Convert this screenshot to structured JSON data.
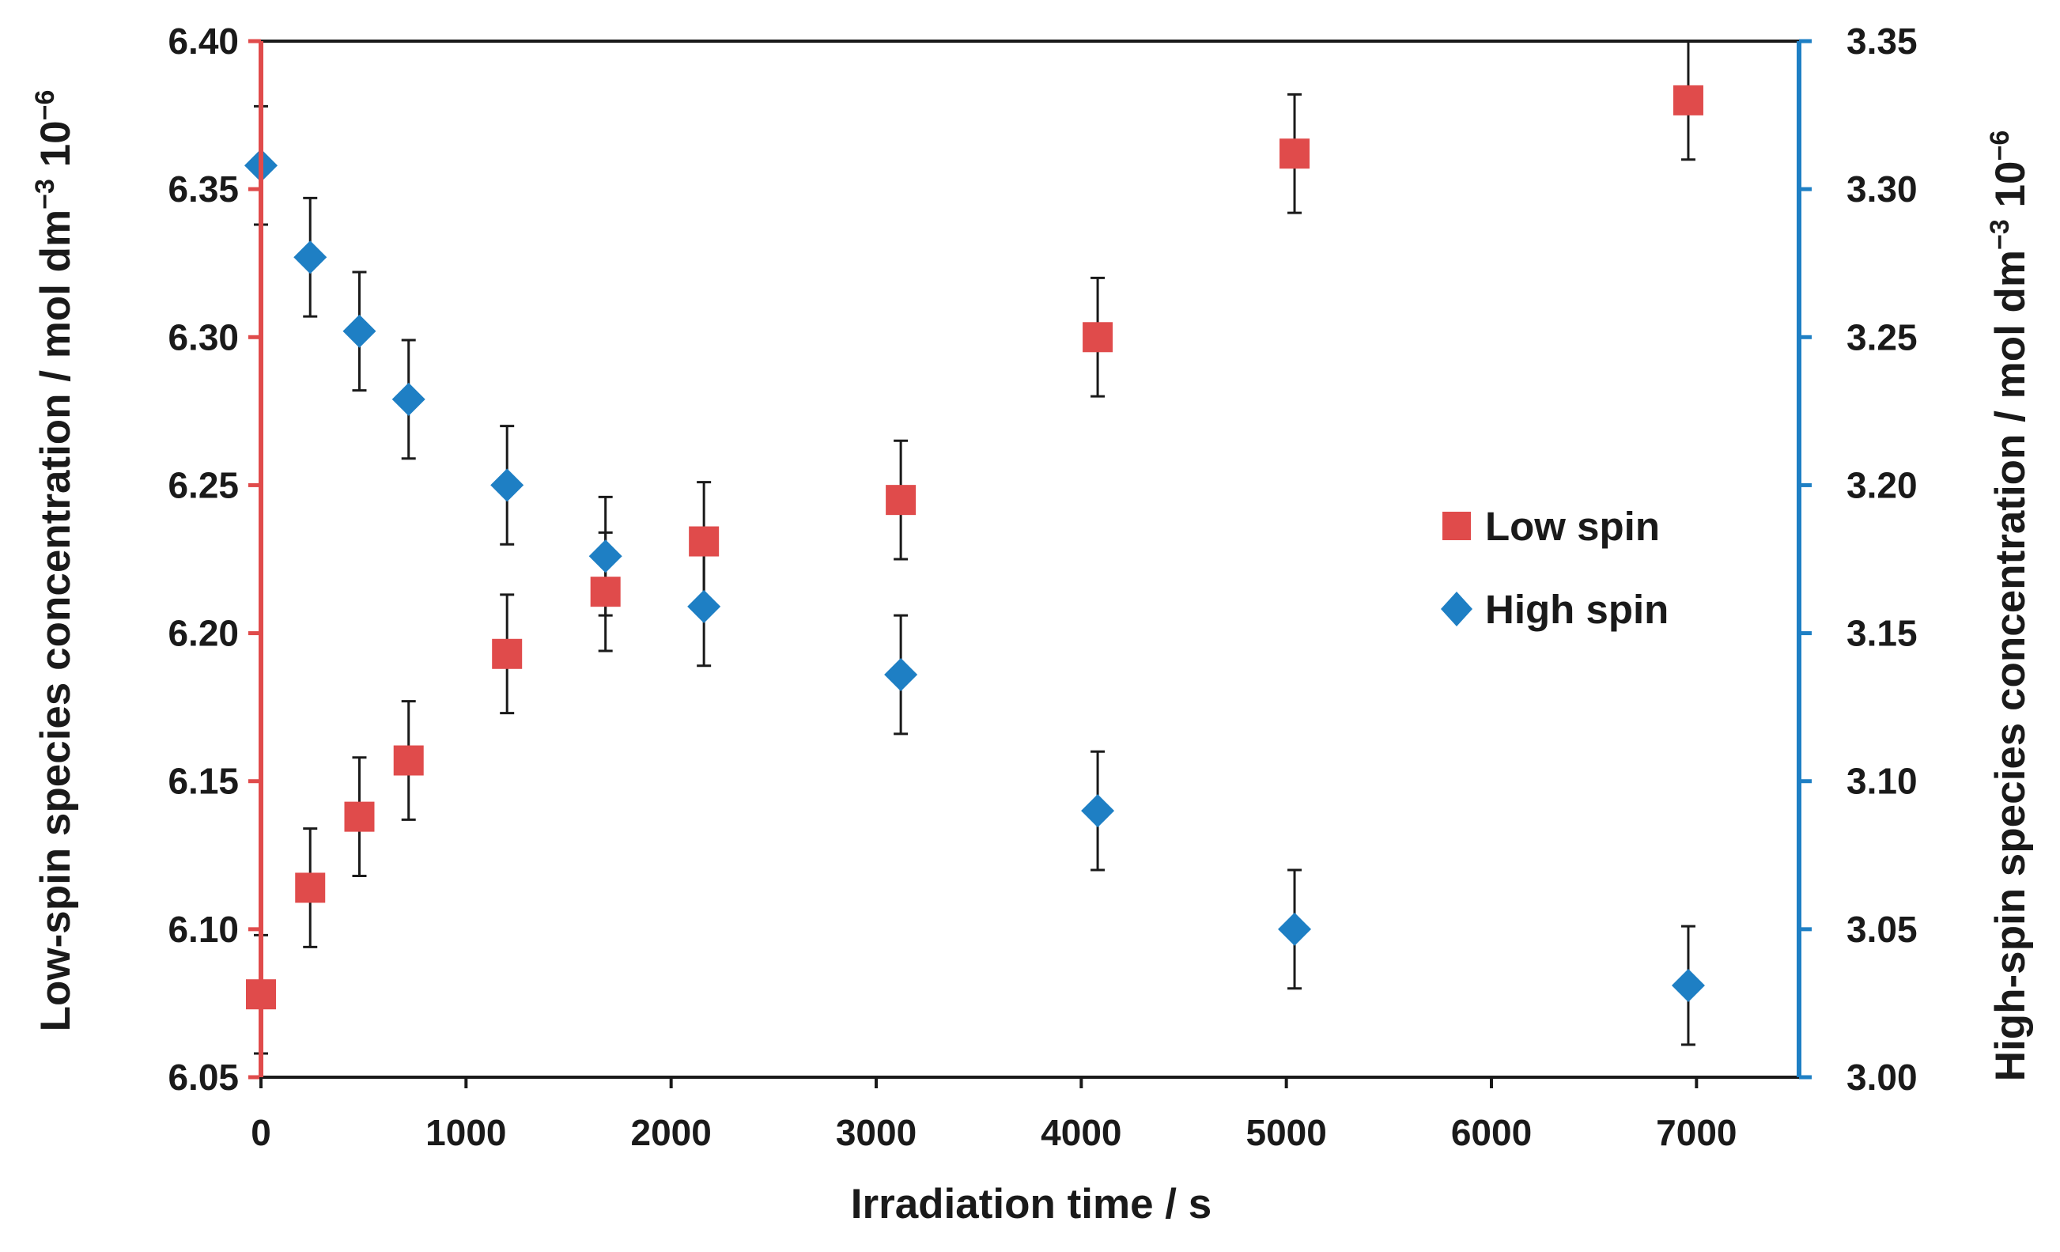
{
  "chart_data": {
    "type": "scatter",
    "title": "",
    "xlabel": "Irradiation time / s",
    "ylabel_left": "Low-spin species concentration / mol dm",
    "ylabel_right": "High-spin species concentration / mol dm",
    "ylabel_units_sup": "−3",
    "ylabel_units_pre": " 10",
    "ylabel_units_exp": "−6",
    "xlim": [
      0,
      7500
    ],
    "ylim_left": [
      6.05,
      6.4
    ],
    "ylim_right": [
      3.0,
      3.35
    ],
    "xticks": [
      0,
      1000,
      2000,
      3000,
      4000,
      5000,
      6000,
      7000
    ],
    "xtick_labels": [
      "0",
      "1000",
      "2000",
      "3000",
      "4000",
      "5000",
      "6000",
      "7000"
    ],
    "yticks_left": [
      6.05,
      6.1,
      6.15,
      6.2,
      6.25,
      6.3,
      6.35,
      6.4
    ],
    "ytick_labels_left": [
      "6.05",
      "6.10",
      "6.15",
      "6.20",
      "6.25",
      "6.30",
      "6.35",
      "6.40"
    ],
    "yticks_right": [
      3.0,
      3.05,
      3.1,
      3.15,
      3.2,
      3.25,
      3.3,
      3.35
    ],
    "ytick_labels_right": [
      "3.00",
      "3.05",
      "3.10",
      "3.15",
      "3.20",
      "3.25",
      "3.30",
      "3.35"
    ],
    "legend_position": "right-middle",
    "series": [
      {
        "name": "Low spin",
        "axis": "left",
        "marker": "square",
        "color": "#e04b4b",
        "x": [
          0,
          240,
          480,
          720,
          1200,
          1680,
          2160,
          3120,
          4080,
          5040,
          6960
        ],
        "y": [
          6.078,
          6.114,
          6.138,
          6.157,
          6.193,
          6.214,
          6.231,
          6.245,
          6.3,
          6.362,
          6.38
        ],
        "error": 0.02
      },
      {
        "name": "High spin",
        "axis": "right",
        "marker": "diamond",
        "color": "#1e7fc4",
        "x": [
          0,
          240,
          480,
          720,
          1200,
          1680,
          2160,
          3120,
          4080,
          5040,
          6960
        ],
        "y": [
          3.308,
          3.277,
          3.252,
          3.229,
          3.2,
          3.176,
          3.159,
          3.136,
          3.09,
          3.05,
          3.031
        ],
        "error": 0.02
      }
    ]
  },
  "colors": {
    "left_axis": "#e04b4b",
    "right_axis": "#1e7fc4",
    "frame": "#1a1a1a",
    "error_bar": "#1a1a1a"
  }
}
